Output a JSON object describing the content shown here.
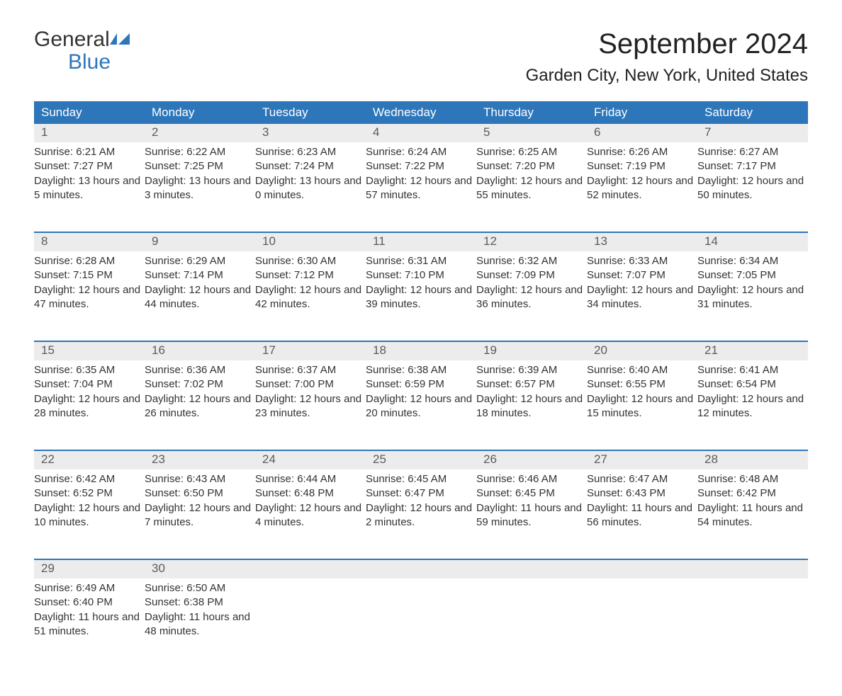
{
  "logo": {
    "line1": "General",
    "line2": "Blue",
    "icon_color": "#2d76ba"
  },
  "header": {
    "month_title": "September 2024",
    "location": "Garden City, New York, United States"
  },
  "colors": {
    "header_bg": "#2d76ba",
    "header_text": "#ffffff",
    "daynum_bg": "#ececec",
    "daynum_text": "#5b5b5b",
    "body_text": "#333333",
    "row_border": "#2d76ba"
  },
  "day_headers": [
    "Sunday",
    "Monday",
    "Tuesday",
    "Wednesday",
    "Thursday",
    "Friday",
    "Saturday"
  ],
  "weeks": [
    [
      {
        "day": "1",
        "sunrise": "Sunrise: 6:21 AM",
        "sunset": "Sunset: 7:27 PM",
        "daylight": "Daylight: 13 hours and 5 minutes."
      },
      {
        "day": "2",
        "sunrise": "Sunrise: 6:22 AM",
        "sunset": "Sunset: 7:25 PM",
        "daylight": "Daylight: 13 hours and 3 minutes."
      },
      {
        "day": "3",
        "sunrise": "Sunrise: 6:23 AM",
        "sunset": "Sunset: 7:24 PM",
        "daylight": "Daylight: 13 hours and 0 minutes."
      },
      {
        "day": "4",
        "sunrise": "Sunrise: 6:24 AM",
        "sunset": "Sunset: 7:22 PM",
        "daylight": "Daylight: 12 hours and 57 minutes."
      },
      {
        "day": "5",
        "sunrise": "Sunrise: 6:25 AM",
        "sunset": "Sunset: 7:20 PM",
        "daylight": "Daylight: 12 hours and 55 minutes."
      },
      {
        "day": "6",
        "sunrise": "Sunrise: 6:26 AM",
        "sunset": "Sunset: 7:19 PM",
        "daylight": "Daylight: 12 hours and 52 minutes."
      },
      {
        "day": "7",
        "sunrise": "Sunrise: 6:27 AM",
        "sunset": "Sunset: 7:17 PM",
        "daylight": "Daylight: 12 hours and 50 minutes."
      }
    ],
    [
      {
        "day": "8",
        "sunrise": "Sunrise: 6:28 AM",
        "sunset": "Sunset: 7:15 PM",
        "daylight": "Daylight: 12 hours and 47 minutes."
      },
      {
        "day": "9",
        "sunrise": "Sunrise: 6:29 AM",
        "sunset": "Sunset: 7:14 PM",
        "daylight": "Daylight: 12 hours and 44 minutes."
      },
      {
        "day": "10",
        "sunrise": "Sunrise: 6:30 AM",
        "sunset": "Sunset: 7:12 PM",
        "daylight": "Daylight: 12 hours and 42 minutes."
      },
      {
        "day": "11",
        "sunrise": "Sunrise: 6:31 AM",
        "sunset": "Sunset: 7:10 PM",
        "daylight": "Daylight: 12 hours and 39 minutes."
      },
      {
        "day": "12",
        "sunrise": "Sunrise: 6:32 AM",
        "sunset": "Sunset: 7:09 PM",
        "daylight": "Daylight: 12 hours and 36 minutes."
      },
      {
        "day": "13",
        "sunrise": "Sunrise: 6:33 AM",
        "sunset": "Sunset: 7:07 PM",
        "daylight": "Daylight: 12 hours and 34 minutes."
      },
      {
        "day": "14",
        "sunrise": "Sunrise: 6:34 AM",
        "sunset": "Sunset: 7:05 PM",
        "daylight": "Daylight: 12 hours and 31 minutes."
      }
    ],
    [
      {
        "day": "15",
        "sunrise": "Sunrise: 6:35 AM",
        "sunset": "Sunset: 7:04 PM",
        "daylight": "Daylight: 12 hours and 28 minutes."
      },
      {
        "day": "16",
        "sunrise": "Sunrise: 6:36 AM",
        "sunset": "Sunset: 7:02 PM",
        "daylight": "Daylight: 12 hours and 26 minutes."
      },
      {
        "day": "17",
        "sunrise": "Sunrise: 6:37 AM",
        "sunset": "Sunset: 7:00 PM",
        "daylight": "Daylight: 12 hours and 23 minutes."
      },
      {
        "day": "18",
        "sunrise": "Sunrise: 6:38 AM",
        "sunset": "Sunset: 6:59 PM",
        "daylight": "Daylight: 12 hours and 20 minutes."
      },
      {
        "day": "19",
        "sunrise": "Sunrise: 6:39 AM",
        "sunset": "Sunset: 6:57 PM",
        "daylight": "Daylight: 12 hours and 18 minutes."
      },
      {
        "day": "20",
        "sunrise": "Sunrise: 6:40 AM",
        "sunset": "Sunset: 6:55 PM",
        "daylight": "Daylight: 12 hours and 15 minutes."
      },
      {
        "day": "21",
        "sunrise": "Sunrise: 6:41 AM",
        "sunset": "Sunset: 6:54 PM",
        "daylight": "Daylight: 12 hours and 12 minutes."
      }
    ],
    [
      {
        "day": "22",
        "sunrise": "Sunrise: 6:42 AM",
        "sunset": "Sunset: 6:52 PM",
        "daylight": "Daylight: 12 hours and 10 minutes."
      },
      {
        "day": "23",
        "sunrise": "Sunrise: 6:43 AM",
        "sunset": "Sunset: 6:50 PM",
        "daylight": "Daylight: 12 hours and 7 minutes."
      },
      {
        "day": "24",
        "sunrise": "Sunrise: 6:44 AM",
        "sunset": "Sunset: 6:48 PM",
        "daylight": "Daylight: 12 hours and 4 minutes."
      },
      {
        "day": "25",
        "sunrise": "Sunrise: 6:45 AM",
        "sunset": "Sunset: 6:47 PM",
        "daylight": "Daylight: 12 hours and 2 minutes."
      },
      {
        "day": "26",
        "sunrise": "Sunrise: 6:46 AM",
        "sunset": "Sunset: 6:45 PM",
        "daylight": "Daylight: 11 hours and 59 minutes."
      },
      {
        "day": "27",
        "sunrise": "Sunrise: 6:47 AM",
        "sunset": "Sunset: 6:43 PM",
        "daylight": "Daylight: 11 hours and 56 minutes."
      },
      {
        "day": "28",
        "sunrise": "Sunrise: 6:48 AM",
        "sunset": "Sunset: 6:42 PM",
        "daylight": "Daylight: 11 hours and 54 minutes."
      }
    ],
    [
      {
        "day": "29",
        "sunrise": "Sunrise: 6:49 AM",
        "sunset": "Sunset: 6:40 PM",
        "daylight": "Daylight: 11 hours and 51 minutes."
      },
      {
        "day": "30",
        "sunrise": "Sunrise: 6:50 AM",
        "sunset": "Sunset: 6:38 PM",
        "daylight": "Daylight: 11 hours and 48 minutes."
      },
      null,
      null,
      null,
      null,
      null
    ]
  ]
}
